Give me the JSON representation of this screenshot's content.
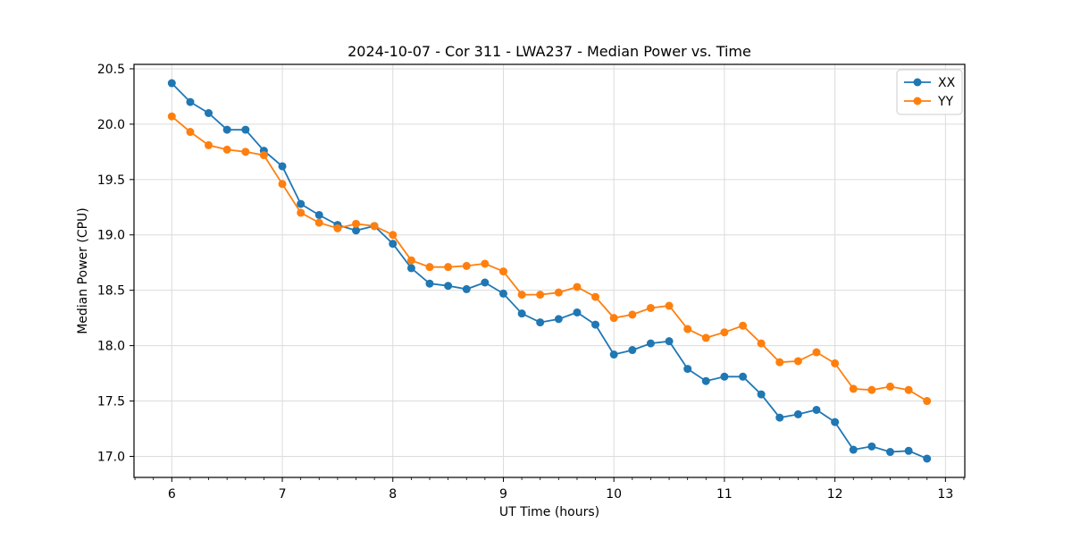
{
  "chart": {
    "title": "2024-10-07 - Cor 311 - LWA237 - Median Power vs. Time",
    "xlabel": "UT Time (hours)",
    "ylabel": "Median Power (CPU)"
  },
  "chart_data": {
    "type": "line",
    "title": "2024-10-07 - Cor 311 - LWA237 - Median Power vs. Time",
    "xlabel": "UT Time (hours)",
    "ylabel": "Median Power (CPU)",
    "xlim": [
      5.658,
      13.175
    ],
    "ylim": [
      16.81,
      20.54
    ],
    "xticks": [
      6,
      7,
      8,
      9,
      10,
      11,
      12,
      13
    ],
    "yticks": [
      17.0,
      17.5,
      18.0,
      18.5,
      19.0,
      19.5,
      20.0,
      20.5
    ],
    "grid": true,
    "grid_color": "#dcdcdc",
    "legend_position": "upper right",
    "marker": "o",
    "x": [
      6.0,
      6.167,
      6.333,
      6.5,
      6.667,
      6.833,
      7.0,
      7.167,
      7.333,
      7.5,
      7.667,
      7.833,
      8.0,
      8.167,
      8.333,
      8.5,
      8.667,
      8.833,
      9.0,
      9.167,
      9.333,
      9.5,
      9.667,
      9.833,
      10.0,
      10.167,
      10.333,
      10.5,
      10.667,
      10.833,
      11.0,
      11.167,
      11.333,
      11.5,
      11.667,
      11.833,
      12.0,
      12.167,
      12.333,
      12.5,
      12.667,
      12.833
    ],
    "series": [
      {
        "name": "XX",
        "color": "#1f77b4",
        "values": [
          20.37,
          20.2,
          20.1,
          19.95,
          19.95,
          19.76,
          19.62,
          19.28,
          19.18,
          19.09,
          19.04,
          19.08,
          18.92,
          18.7,
          18.56,
          18.54,
          18.51,
          18.57,
          18.47,
          18.29,
          18.21,
          18.24,
          18.3,
          18.19,
          17.92,
          17.96,
          18.02,
          18.04,
          17.79,
          17.68,
          17.72,
          17.72,
          17.56,
          17.35,
          17.38,
          17.42,
          17.31,
          17.06,
          17.09,
          17.04,
          17.05,
          16.98
        ]
      },
      {
        "name": "YY",
        "color": "#ff7f0e",
        "values": [
          20.07,
          19.93,
          19.81,
          19.77,
          19.75,
          19.72,
          19.46,
          19.2,
          19.11,
          19.06,
          19.1,
          19.08,
          19.0,
          18.77,
          18.71,
          18.71,
          18.72,
          18.74,
          18.67,
          18.46,
          18.46,
          18.48,
          18.53,
          18.44,
          18.25,
          18.28,
          18.34,
          18.36,
          18.15,
          18.07,
          18.12,
          18.18,
          18.02,
          17.85,
          17.86,
          17.94,
          17.84,
          17.61,
          17.6,
          17.63,
          17.6,
          17.5
        ]
      }
    ]
  }
}
